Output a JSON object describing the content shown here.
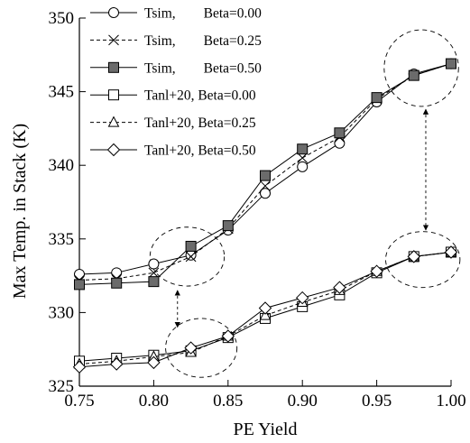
{
  "chart_data": {
    "type": "line",
    "title": "",
    "xlabel": "PE Yield",
    "ylabel": "Max Temp. in Stack (K)",
    "xlim": [
      0.75,
      1.0
    ],
    "ylim": [
      325,
      350
    ],
    "x_ticks": [
      "0.75",
      "0.80",
      "0.85",
      "0.90",
      "0.95",
      "1.00"
    ],
    "y_ticks": [
      "325",
      "330",
      "335",
      "340",
      "345",
      "350"
    ],
    "grid": false,
    "legend_position": "top-left",
    "x": [
      0.75,
      0.775,
      0.8,
      0.825,
      0.85,
      0.875,
      0.9,
      0.925,
      0.95,
      0.975,
      1.0
    ],
    "series": [
      {
        "name": "Tsim,        Beta=0.00",
        "marker": "circle-open",
        "line": "solid",
        "values": [
          332.6,
          332.7,
          333.3,
          333.9,
          335.6,
          338.1,
          339.9,
          341.5,
          344.3,
          346.2,
          346.9
        ]
      },
      {
        "name": "Tsim,        Beta=0.25",
        "marker": "x",
        "line": "dashed",
        "values": [
          332.2,
          332.3,
          332.7,
          333.8,
          335.7,
          338.6,
          340.5,
          341.9,
          344.5,
          346.1,
          346.9
        ]
      },
      {
        "name": "Tsim,        Beta=0.50",
        "marker": "square-filled",
        "line": "solid",
        "values": [
          331.9,
          332.0,
          332.1,
          334.5,
          335.9,
          339.3,
          341.1,
          342.2,
          344.6,
          346.1,
          346.9
        ]
      },
      {
        "name": "Tanl+20, Beta=0.00",
        "marker": "square-open",
        "line": "solid",
        "values": [
          326.7,
          326.9,
          327.1,
          327.4,
          328.3,
          329.6,
          330.4,
          331.2,
          332.7,
          333.8,
          334.1
        ]
      },
      {
        "name": "Tanl+20, Beta=0.25",
        "marker": "triangle-open",
        "line": "dashed",
        "values": [
          326.5,
          326.7,
          327.0,
          327.3,
          328.4,
          329.8,
          330.7,
          331.5,
          332.8,
          333.8,
          334.1
        ]
      },
      {
        "name": "Tanl+20, Beta=0.50",
        "marker": "diamond-open",
        "line": "solid",
        "values": [
          326.3,
          326.5,
          326.6,
          327.6,
          328.4,
          330.3,
          331.0,
          331.7,
          332.8,
          333.8,
          334.1
        ]
      }
    ],
    "annotations": [
      {
        "kind": "dashed-ellipse",
        "center": [
          0.8225,
          333.8
        ],
        "radius": [
          0.025,
          2.0
        ]
      },
      {
        "kind": "dashed-ellipse",
        "center": [
          0.832,
          327.6
        ],
        "radius": [
          0.024,
          2.0
        ]
      },
      {
        "kind": "dashed-ellipse",
        "center": [
          0.98,
          346.6
        ],
        "radius": [
          0.025,
          2.6
        ]
      },
      {
        "kind": "dashed-ellipse",
        "center": [
          0.981,
          333.6
        ],
        "radius": [
          0.025,
          1.9
        ]
      },
      {
        "kind": "double-arrow-dashed",
        "from": [
          0.816,
          331.5
        ],
        "to": [
          0.816,
          329.0
        ]
      },
      {
        "kind": "double-arrow-dashed",
        "from": [
          0.983,
          343.8
        ],
        "to": [
          0.983,
          335.6
        ]
      }
    ]
  }
}
